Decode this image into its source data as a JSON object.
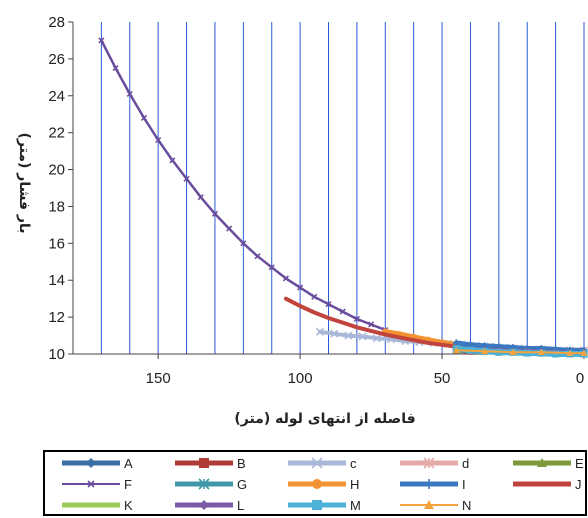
{
  "chart_data": {
    "type": "line",
    "xlabel": "فاصله از انتهای لوله (متر)",
    "ylabel": "بار فشار (متر)",
    "x_reversed": true,
    "xlim": [
      0,
      180
    ],
    "ylim": [
      10,
      28
    ],
    "xticks": [
      150,
      100,
      50,
      0
    ],
    "yticks": [
      10,
      12,
      14,
      16,
      18,
      20,
      22,
      24,
      26,
      28
    ],
    "grid": "vertical",
    "legend_position": "bottom",
    "series": [
      {
        "name": "A",
        "color": "#3b6ea5",
        "marker": "diamond",
        "x": [
          45,
          40,
          35,
          30,
          25,
          20,
          15,
          10,
          5,
          0
        ],
        "y": [
          10.3,
          10.25,
          10.2,
          10.2,
          10.15,
          10.15,
          10.1,
          10.1,
          10.05,
          10.0
        ]
      },
      {
        "name": "B",
        "color": "#b03a36",
        "marker": "square",
        "x": [
          45,
          40,
          35,
          30,
          25,
          20,
          15,
          10,
          5,
          0
        ],
        "y": [
          10.2,
          10.15,
          10.15,
          10.1,
          10.1,
          10.1,
          10.05,
          10.05,
          10.0,
          10.0
        ]
      },
      {
        "name": "c",
        "color": "#a9b8d8",
        "marker": "x",
        "x": [
          93,
          88,
          83,
          78,
          73,
          68,
          63,
          58,
          53,
          48,
          43,
          38,
          33,
          28,
          23,
          18,
          13,
          8,
          3,
          0
        ],
        "y": [
          11.2,
          11.1,
          11.0,
          10.95,
          10.85,
          10.8,
          10.7,
          10.65,
          10.6,
          10.55,
          10.5,
          10.45,
          10.4,
          10.35,
          10.3,
          10.25,
          10.2,
          10.15,
          10.1,
          10.1
        ]
      },
      {
        "name": "d",
        "color": "#e3aaa8",
        "marker": "asterisk",
        "x": [
          45,
          35,
          25,
          15,
          5,
          0
        ],
        "y": [
          10.4,
          10.35,
          10.3,
          10.25,
          10.2,
          10.2
        ]
      },
      {
        "name": "E",
        "color": "#7c9a3a",
        "marker": "triangle",
        "x": [
          45,
          35,
          25,
          15,
          5,
          0
        ],
        "y": [
          10.3,
          10.25,
          10.2,
          10.15,
          10.1,
          10.1
        ]
      },
      {
        "name": "F",
        "color": "#6a4c9c",
        "marker": "x",
        "x": [
          170,
          165,
          160,
          155,
          150,
          145,
          140,
          135,
          130,
          125,
          120,
          115,
          110,
          105,
          100,
          95,
          90,
          85,
          80,
          75,
          70
        ],
        "y": [
          27.0,
          25.5,
          24.1,
          22.8,
          21.6,
          20.5,
          19.5,
          18.5,
          17.6,
          16.8,
          16.0,
          15.3,
          14.7,
          14.1,
          13.6,
          13.1,
          12.7,
          12.3,
          11.9,
          11.6,
          11.3
        ]
      },
      {
        "name": "G",
        "color": "#3f97a8",
        "marker": "asterisk",
        "x": [
          45,
          40,
          35,
          30,
          25,
          20,
          15,
          10,
          5,
          0
        ],
        "y": [
          10.2,
          10.2,
          10.15,
          10.15,
          10.1,
          10.1,
          10.1,
          10.05,
          10.05,
          10.0
        ]
      },
      {
        "name": "H",
        "color": "#f39233",
        "marker": "circle",
        "x": [
          70,
          65,
          60,
          55,
          50,
          45,
          40,
          35,
          30,
          25,
          20,
          15,
          10,
          5,
          0
        ],
        "y": [
          11.2,
          11.05,
          10.9,
          10.75,
          10.6,
          10.5,
          10.4,
          10.35,
          10.3,
          10.25,
          10.2,
          10.15,
          10.1,
          10.05,
          10.0
        ]
      },
      {
        "name": "I",
        "color": "#3b78c0",
        "marker": "plus",
        "x": [
          45,
          40,
          35,
          30,
          25,
          20,
          15,
          10,
          5,
          0
        ],
        "y": [
          10.6,
          10.5,
          10.45,
          10.4,
          10.35,
          10.3,
          10.3,
          10.25,
          10.2,
          10.2
        ]
      },
      {
        "name": "J",
        "color": "#c0433c",
        "marker": "none",
        "x": [
          105,
          100,
          95,
          90,
          85,
          80,
          75,
          70,
          65,
          60,
          55,
          50,
          45
        ],
        "y": [
          13.0,
          12.6,
          12.25,
          11.95,
          11.7,
          11.45,
          11.25,
          11.05,
          10.9,
          10.75,
          10.6,
          10.5,
          10.4
        ]
      },
      {
        "name": "K",
        "color": "#9bcd5a",
        "marker": "none",
        "x": [
          45,
          35,
          25,
          15,
          5,
          0
        ],
        "y": [
          10.2,
          10.15,
          10.1,
          10.1,
          10.05,
          10.05
        ]
      },
      {
        "name": "L",
        "color": "#7b5aa6",
        "marker": "diamond",
        "x": [
          45,
          40,
          35,
          30,
          25,
          20,
          15,
          10,
          5,
          0
        ],
        "y": [
          10.3,
          10.25,
          10.2,
          10.2,
          10.15,
          10.15,
          10.1,
          10.1,
          10.05,
          10.05
        ]
      },
      {
        "name": "M",
        "color": "#4bb1d6",
        "marker": "square",
        "x": [
          45,
          40,
          35,
          30,
          25,
          20,
          15,
          10,
          5,
          0
        ],
        "y": [
          10.3,
          10.2,
          10.15,
          10.1,
          10.1,
          10.05,
          10.05,
          10.0,
          10.0,
          10.0
        ]
      },
      {
        "name": "N",
        "color": "#f5a33c",
        "marker": "triangle",
        "x": [
          45,
          35,
          25,
          15,
          5,
          0
        ],
        "y": [
          10.2,
          10.15,
          10.1,
          10.1,
          10.05,
          10.05
        ]
      }
    ]
  }
}
